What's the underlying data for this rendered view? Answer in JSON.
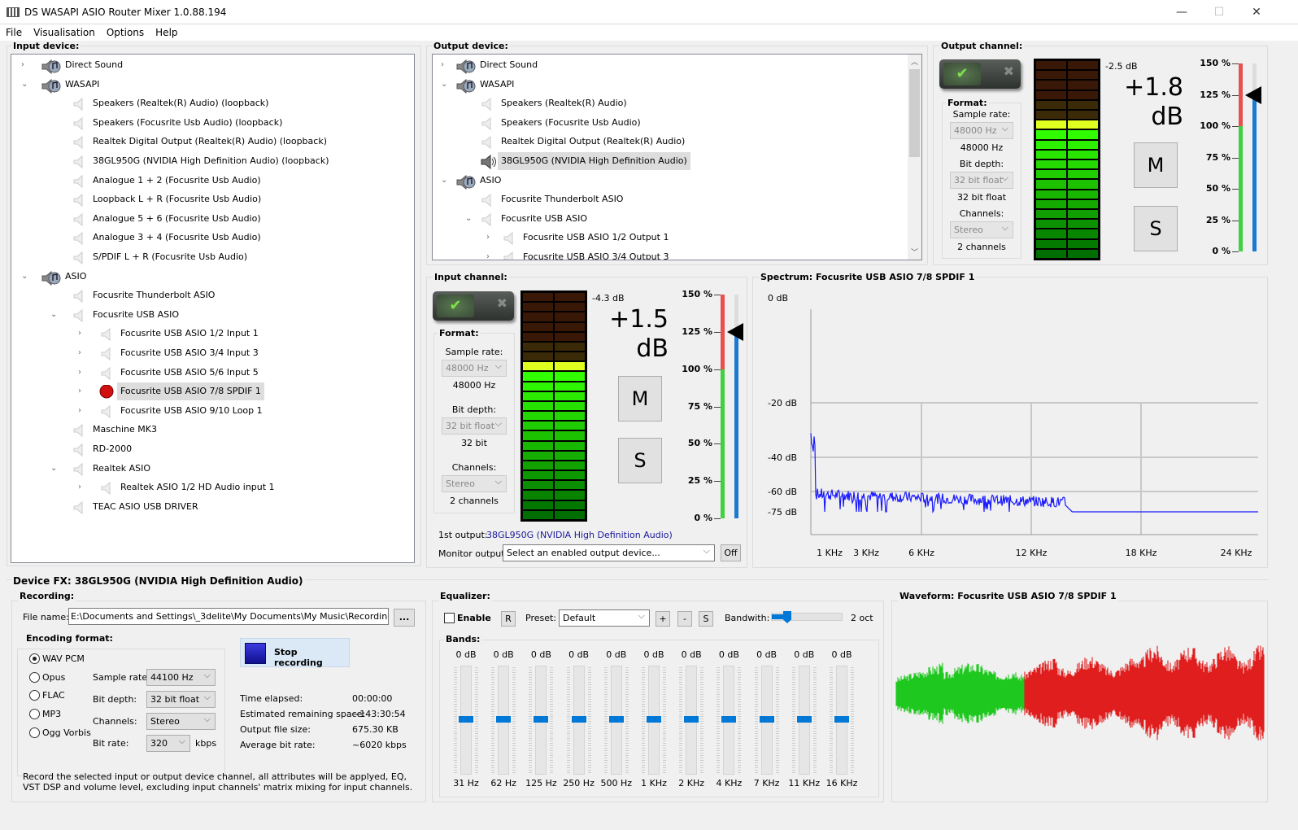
{
  "window": {
    "title": "DS WASAPI ASIO Router Mixer 1.0.88.194",
    "minimize": "—",
    "maximize": "☐",
    "close": "✕"
  },
  "menu": [
    "File",
    "Visualisation",
    "Options",
    "Help"
  ],
  "input_device": {
    "label": "Input device:",
    "tree": [
      {
        "text": "Direct Sound",
        "level": 0,
        "exp": "›",
        "icon": "speaker-note"
      },
      {
        "text": "WASAPI",
        "level": 0,
        "exp": "⌄",
        "icon": "speaker-note"
      },
      {
        "text": "Speakers (Realtek(R) Audio) (loopback)",
        "level": 1
      },
      {
        "text": "Speakers (Focusrite Usb Audio) (loopback)",
        "level": 1
      },
      {
        "text": "Realtek Digital Output (Realtek(R) Audio) (loopback)",
        "level": 1
      },
      {
        "text": "38GL950G (NVIDIA High Definition Audio) (loopback)",
        "level": 1
      },
      {
        "text": "Analogue 1 + 2 (Focusrite Usb Audio)",
        "level": 1
      },
      {
        "text": "Loopback L + R (Focusrite Usb Audio)",
        "level": 1
      },
      {
        "text": "Analogue 5 + 6 (Focusrite Usb Audio)",
        "level": 1
      },
      {
        "text": "Analogue 3 + 4 (Focusrite Usb Audio)",
        "level": 1
      },
      {
        "text": "S/PDIF L + R (Focusrite Usb Audio)",
        "level": 1
      },
      {
        "text": "ASIO",
        "level": 0,
        "exp": "⌄",
        "icon": "speaker-note"
      },
      {
        "text": "Focusrite Thunderbolt ASIO",
        "level": 1
      },
      {
        "text": "Focusrite USB ASIO",
        "level": 1,
        "exp": "⌄"
      },
      {
        "text": "Focusrite USB ASIO 1/2 Input 1",
        "level": 2,
        "exp": "›"
      },
      {
        "text": "Focusrite USB ASIO 3/4 Input 3",
        "level": 2,
        "exp": "›"
      },
      {
        "text": "Focusrite USB ASIO 5/6 Input 5",
        "level": 2,
        "exp": "›"
      },
      {
        "text": "Focusrite USB ASIO 7/8 SPDIF 1",
        "level": 2,
        "exp": "›",
        "selected": true,
        "icon": "record"
      },
      {
        "text": "Focusrite USB ASIO 9/10 Loop 1",
        "level": 2,
        "exp": "›"
      },
      {
        "text": "Maschine MK3",
        "level": 1
      },
      {
        "text": "RD-2000",
        "level": 1
      },
      {
        "text": "Realtek ASIO",
        "level": 1,
        "exp": "⌄"
      },
      {
        "text": "Realtek ASIO 1/2 HD Audio input 1",
        "level": 2,
        "exp": "›"
      },
      {
        "text": "TEAC ASIO USB DRIVER",
        "level": 1
      }
    ]
  },
  "output_device": {
    "label": "Output device:",
    "tree": [
      {
        "text": "Direct Sound",
        "level": 0,
        "exp": "›",
        "icon": "speaker-note"
      },
      {
        "text": "WASAPI",
        "level": 0,
        "exp": "⌄",
        "icon": "speaker-note"
      },
      {
        "text": "Speakers (Realtek(R) Audio)",
        "level": 1
      },
      {
        "text": "Speakers (Focusrite Usb Audio)",
        "level": 1
      },
      {
        "text": "Realtek Digital Output (Realtek(R) Audio)",
        "level": 1
      },
      {
        "text": "38GL950G (NVIDIA High Definition Audio)",
        "level": 1,
        "selected": true,
        "icon": "speaker-active"
      },
      {
        "text": "ASIO",
        "level": 0,
        "exp": "⌄",
        "icon": "speaker-note"
      },
      {
        "text": "Focusrite Thunderbolt ASIO",
        "level": 1
      },
      {
        "text": "Focusrite USB ASIO",
        "level": 1,
        "exp": "⌄"
      },
      {
        "text": "Focusrite USB ASIO 1/2 Output 1",
        "level": 2,
        "exp": "›"
      },
      {
        "text": "Focusrite USB ASIO 3/4 Output 3",
        "level": 2,
        "exp": "›"
      }
    ]
  },
  "output_channel": {
    "label": "Output channel:",
    "format_label": "Format:",
    "sample_rate_label": "Sample rate:",
    "sample_rate": "48000 Hz",
    "sample_rate_value": "48000 Hz",
    "bit_depth_label": "Bit depth:",
    "bit_depth": "32 bit float",
    "bit_depth_value": "32 bit float",
    "channels_label": "Channels:",
    "channels": "Stereo",
    "channels_value": "2 channels",
    "peak": "-2.5 dB",
    "gain": "+1.8",
    "gain_unit": "dB",
    "mute": "M",
    "solo": "S",
    "level_fraction": 0.72,
    "volume_percent": 125,
    "scale": [
      "150 %",
      "125 %",
      "100 %",
      "75 %",
      "50 %",
      "25 %",
      "0 %"
    ]
  },
  "input_channel": {
    "label": "Input channel:",
    "format_label": "Format:",
    "sample_rate_label": "Sample rate:",
    "sample_rate": "48000 Hz",
    "sample_rate_value": "48000 Hz",
    "bit_depth_label": "Bit depth:",
    "bit_depth": "32 bit float",
    "bit_depth_value": "32 bit",
    "channels_label": "Channels:",
    "channels": "Stereo",
    "channels_value": "2 channels",
    "peak": "-4.3 dB",
    "gain": "+1.5",
    "gain_unit": "dB",
    "mute": "M",
    "solo": "S",
    "level_fraction": 0.71,
    "volume_percent": 125,
    "scale": [
      "150 %",
      "125 %",
      "100 %",
      "75 %",
      "50 %",
      "25 %",
      "0 %"
    ],
    "first_output_label": "1st output:",
    "first_output": "38GL950G (NVIDIA High Definition Audio)",
    "monitor_label": "Monitor output:",
    "monitor_value": "Select an enabled output device...",
    "off": "Off"
  },
  "spectrum": {
    "title": "Spectrum: Focusrite USB ASIO 7/8 SPDIF 1",
    "y_labels": [
      "0 dB",
      "-20 dB",
      "-40 dB",
      "-60 dB",
      "-75 dB"
    ],
    "x_labels": [
      "1 KHz",
      "3 KHz",
      "6 KHz",
      "12 KHz",
      "18 KHz",
      "24 KHz"
    ],
    "color": "#1a1aff"
  },
  "device_fx": {
    "title": "Device FX: 38GL950G (NVIDIA High Definition Audio)"
  },
  "recording": {
    "label": "Recording:",
    "file_label": "File name:",
    "file_name": "E:\\Documents and Settings\\_3delite\\My Documents\\My Music\\Recording.wav",
    "browse": "...",
    "encoding_label": "Encoding format:",
    "formats": [
      "WAV PCM",
      "Opus",
      "FLAC",
      "MP3",
      "Ogg Vorbis"
    ],
    "selected_format": "WAV PCM",
    "sample_rate_label": "Sample rate:",
    "sample_rate": "44100 Hz",
    "bit_depth_label": "Bit depth:",
    "bit_depth": "32 bit float",
    "channels_label": "Channels:",
    "channels": "Stereo",
    "bit_rate_label": "Bit rate:",
    "bit_rate": "320",
    "bit_rate_unit": "kbps",
    "stop": "Stop recording",
    "stats": [
      {
        "k": "Time elapsed:",
        "v": "00:00:00"
      },
      {
        "k": "Estimated remaining space:",
        "v": "~143:30:54"
      },
      {
        "k": "Output file size:",
        "v": "675.30 KB"
      },
      {
        "k": "Average bit rate:",
        "v": "~6020 kbps"
      }
    ],
    "note": "Record the selected input or output device channel, all attributes will be applyed, EQ, VST DSP and volume level, excluding input channels' matrix mixing for input channels."
  },
  "equalizer": {
    "label": "Equalizer:",
    "enable": "Enable",
    "enabled": false,
    "reset": "R",
    "preset_label": "Preset:",
    "preset": "Default",
    "add": "+",
    "remove": "-",
    "save": "S",
    "bandwidth_label": "Bandwith:",
    "bandwidth": "2 oct",
    "bands_label": "Bands:",
    "bands": [
      {
        "f": "31 Hz",
        "g": "0 dB"
      },
      {
        "f": "62 Hz",
        "g": "0 dB"
      },
      {
        "f": "125 Hz",
        "g": "0 dB"
      },
      {
        "f": "250 Hz",
        "g": "0 dB"
      },
      {
        "f": "500 Hz",
        "g": "0 dB"
      },
      {
        "f": "1 KHz",
        "g": "0 dB"
      },
      {
        "f": "2 KHz",
        "g": "0 dB"
      },
      {
        "f": "4 KHz",
        "g": "0 dB"
      },
      {
        "f": "7 KHz",
        "g": "0 dB"
      },
      {
        "f": "11 KHz",
        "g": "0 dB"
      },
      {
        "f": "16 KHz",
        "g": "0 dB"
      }
    ]
  },
  "waveform": {
    "title": "Waveform: Focusrite USB ASIO 7/8 SPDIF 1",
    "played_color": "#1ec81e",
    "remaining_color": "#e01e1e"
  }
}
